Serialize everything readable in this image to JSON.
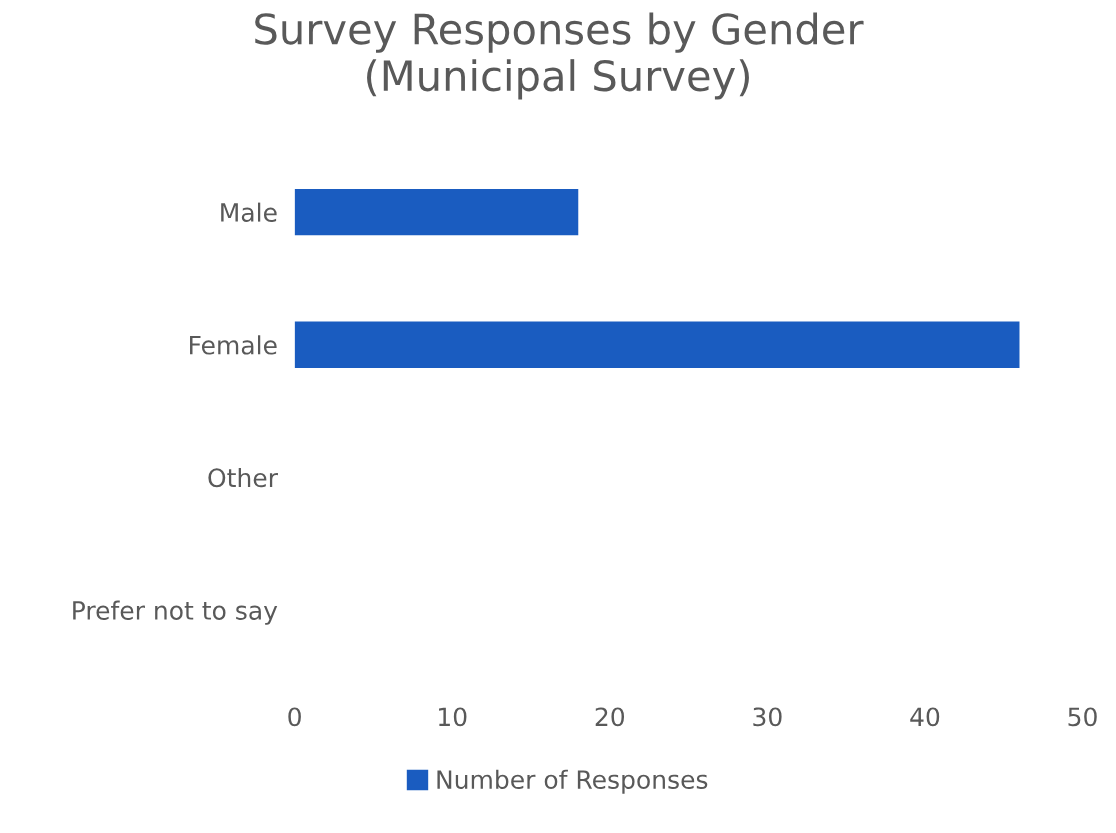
{
  "chart_data": {
    "type": "bar",
    "orientation": "horizontal",
    "title": "Survey Responses by Gender\n(Municipal Survey)",
    "categories": [
      "Male",
      "Female",
      "Other",
      "Prefer not to say"
    ],
    "series": [
      {
        "name": "Number of Responses",
        "color": "#1a5cc0",
        "values": [
          18,
          46,
          0,
          0
        ]
      }
    ],
    "xlim": [
      0,
      50
    ],
    "xticks": [
      0,
      10,
      20,
      30,
      40,
      50
    ],
    "grid": false,
    "legend": "bottom"
  }
}
